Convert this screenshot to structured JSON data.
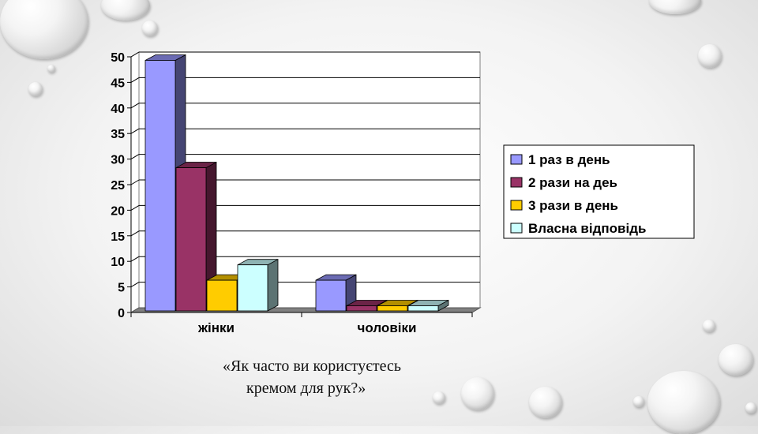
{
  "slide": {
    "caption_line1": "«Як часто ви користуєтесь",
    "caption_line2": "кремом для рук?»"
  },
  "chart_data": {
    "type": "bar",
    "style": "3d-clustered",
    "categories": [
      "жінки",
      "чоловіки"
    ],
    "series": [
      {
        "name": "1 раз в день",
        "color": "#9999ff",
        "values": [
          49,
          6
        ]
      },
      {
        "name": "2 рази на деь",
        "color": "#993366",
        "values": [
          28,
          1
        ]
      },
      {
        "name": "3 рази в день",
        "color": "#ffcc00",
        "values": [
          6,
          1
        ]
      },
      {
        "name": "Власна відповідь",
        "color": "#ccffff",
        "values": [
          9,
          1
        ]
      }
    ],
    "y_ticks": [
      "0",
      "5",
      "10",
      "15",
      "20",
      "25",
      "30",
      "35",
      "40",
      "45",
      "50"
    ],
    "ylim": [
      0,
      50
    ],
    "grid": true,
    "legend_position": "right",
    "title": "",
    "xlabel": "",
    "ylabel": ""
  }
}
